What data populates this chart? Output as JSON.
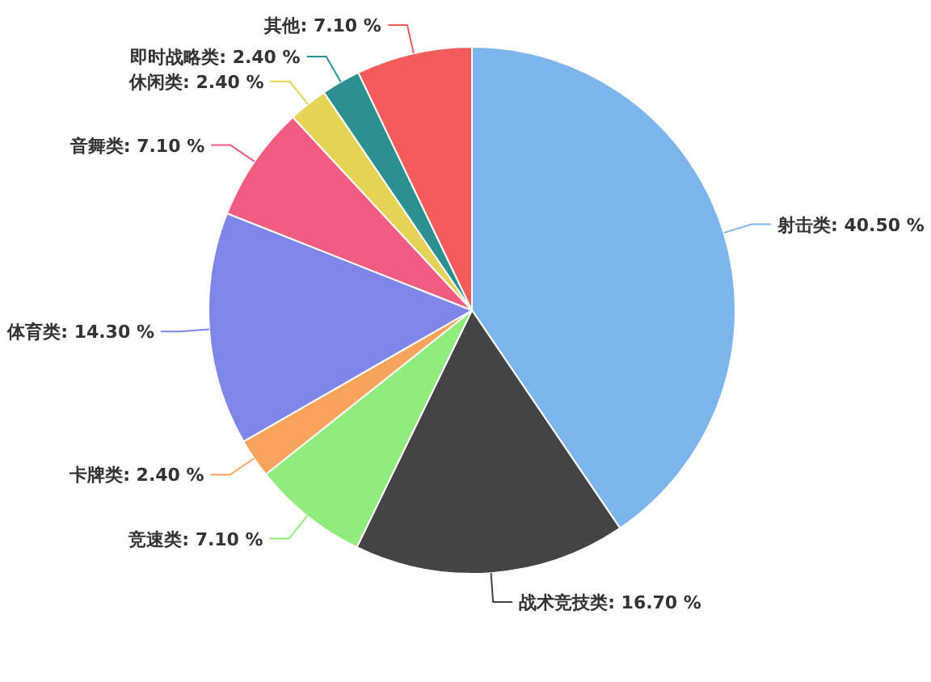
{
  "chart_data": {
    "type": "pie",
    "categories": [
      "射击类",
      "战术竞技类",
      "竞速类",
      "卡牌类",
      "体育类",
      "音舞类",
      "休闲类",
      "即时战略类",
      "其他"
    ],
    "values": [
      40.5,
      16.7,
      7.1,
      2.4,
      14.3,
      7.1,
      2.4,
      2.4,
      7.1
    ],
    "value_labels": [
      "40.50 %",
      "16.70 %",
      "7.10 %",
      "2.40 %",
      "14.30 %",
      "7.10 %",
      "2.40 %",
      "2.40 %",
      "7.10 %"
    ],
    "colors": [
      "#7cb5ec",
      "#434348",
      "#90ed7d",
      "#f7a35c",
      "#8085e9",
      "#f15c80",
      "#e4d354",
      "#2b908f",
      "#f45b5b"
    ]
  }
}
